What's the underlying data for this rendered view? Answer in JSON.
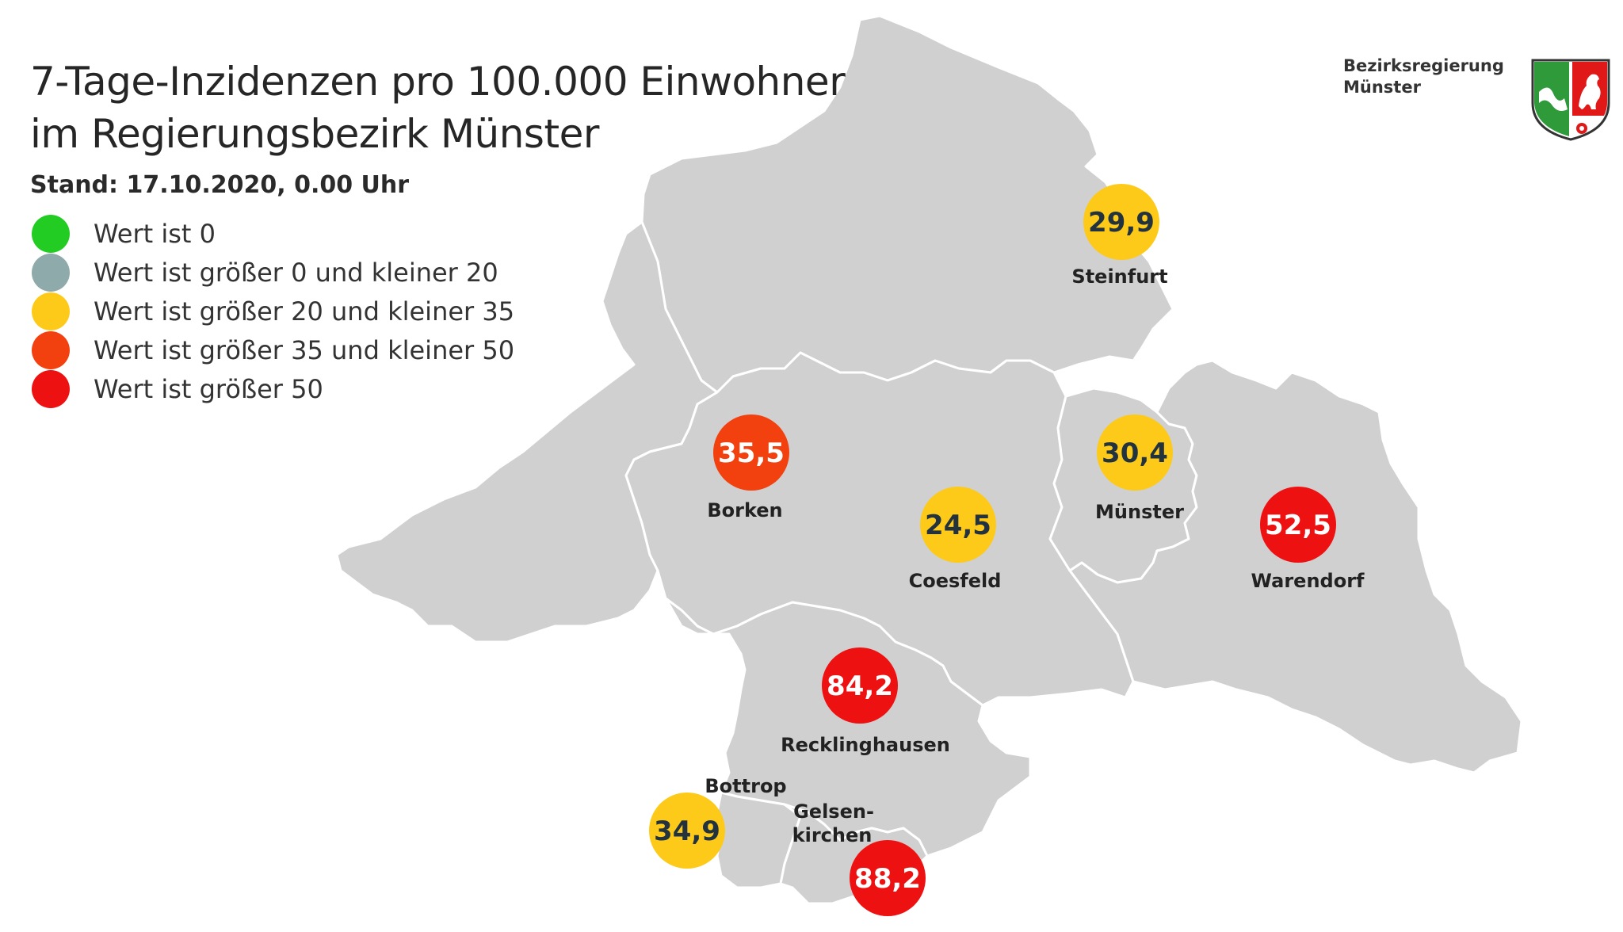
{
  "title": {
    "line1": "7-Tage-Inzidenzen pro 100.000 Einwohner",
    "line2": "im Regierungsbezirk Münster"
  },
  "stand": "Stand: 17.10.2020, 0.00 Uhr",
  "legend": [
    {
      "label": "Wert ist 0",
      "color": "#22cc22"
    },
    {
      "label": "Wert ist größer 0 und kleiner 20",
      "color": "#8faaaa"
    },
    {
      "label": "Wert ist größer 20 und kleiner 35",
      "color": "#fdca1a"
    },
    {
      "label": "Wert ist größer 35 und kleiner 50",
      "color": "#f2400e"
    },
    {
      "label": "Wert ist größer 50",
      "color": "#ee1111"
    }
  ],
  "organization": {
    "line1": "Bezirksregierung",
    "line2": "Münster"
  },
  "crest_icon": "nrw-coat-of-arms-icon",
  "colors": {
    "map_fill": "#d0d0d0",
    "border": "#ffffff",
    "text_dark": "#22333f",
    "text_light": "#ffffff"
  },
  "districts": [
    {
      "id": "steinfurt",
      "name": "Steinfurt",
      "value": "29,9",
      "color": "#fdca1a",
      "text_color": "#22333f"
    },
    {
      "id": "borken",
      "name": "Borken",
      "value": "35,5",
      "color": "#f2400e",
      "text_color": "#ffffff"
    },
    {
      "id": "muenster",
      "name": "Münster",
      "value": "30,4",
      "color": "#fdca1a",
      "text_color": "#22333f"
    },
    {
      "id": "coesfeld",
      "name": "Coesfeld",
      "value": "24,5",
      "color": "#fdca1a",
      "text_color": "#22333f"
    },
    {
      "id": "warendorf",
      "name": "Warendorf",
      "value": "52,5",
      "color": "#ee1111",
      "text_color": "#ffffff"
    },
    {
      "id": "recklinghausen",
      "name": "Recklinghausen",
      "value": "84,2",
      "color": "#ee1111",
      "text_color": "#ffffff"
    },
    {
      "id": "bottrop",
      "name": "Bottrop",
      "value": "34,9",
      "color": "#fdca1a",
      "text_color": "#22333f"
    },
    {
      "id": "gelsenkirchen",
      "name_line1": "Gelsen-",
      "name_line2": "kirchen",
      "value": "88,2",
      "color": "#ee1111",
      "text_color": "#ffffff"
    }
  ]
}
